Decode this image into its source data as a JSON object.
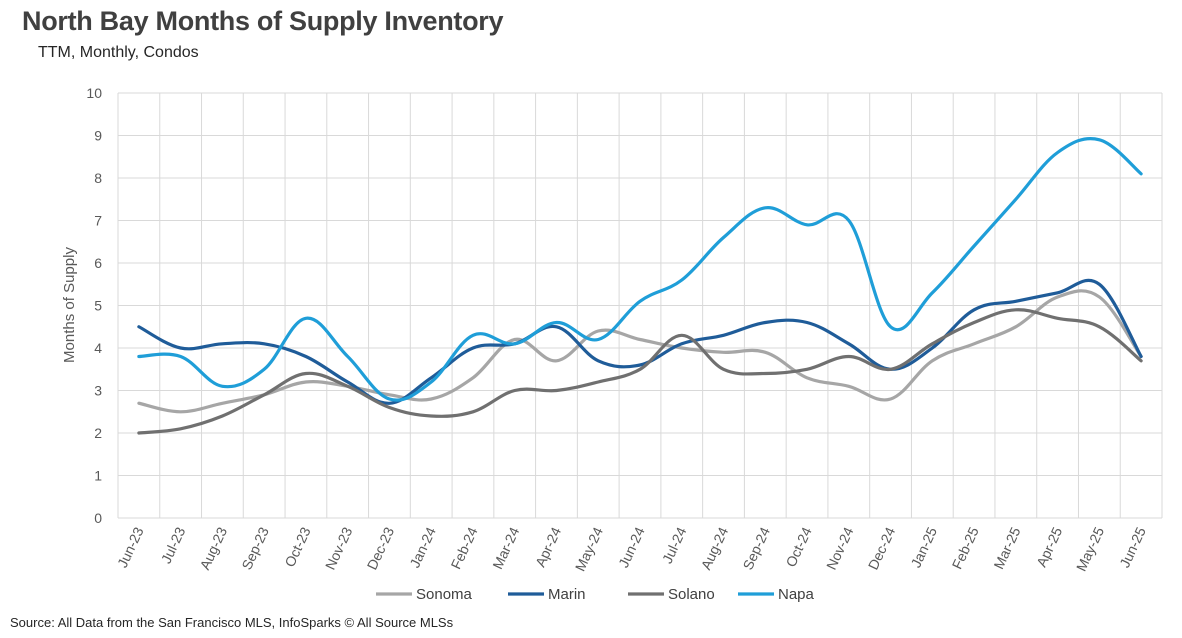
{
  "title": "North Bay Months of Supply Inventory",
  "subtitle": "TTM, Monthly, Condos",
  "source": "Source: All Data from the San Francisco MLS, InfoSparks © All Source MLSs",
  "chart_data": {
    "type": "line",
    "title": "North Bay Months of Supply Inventory",
    "subtitle": "TTM, Monthly, Condos",
    "xlabel": "",
    "ylabel": "Months of Supply",
    "ylim": [
      0,
      10
    ],
    "yticks": [
      "0",
      "1",
      "2",
      "3",
      "4",
      "5",
      "6",
      "7",
      "8",
      "9",
      "10"
    ],
    "grid": true,
    "legend_position": "bottom",
    "categories": [
      "Jun-23",
      "Jul-23",
      "Aug-23",
      "Sep-23",
      "Oct-23",
      "Nov-23",
      "Dec-23",
      "Jan-24",
      "Feb-24",
      "Mar-24",
      "Apr-24",
      "May-24",
      "Jun-24",
      "Jul-24",
      "Aug-24",
      "Sep-24",
      "Oct-24",
      "Nov-24",
      "Dec-24",
      "Jan-25",
      "Feb-25",
      "Mar-25",
      "Apr-25",
      "May-25",
      "Jun-25"
    ],
    "series": [
      {
        "name": "Sonoma",
        "color": "#a6a6a6",
        "values": [
          2.7,
          2.5,
          2.7,
          2.9,
          3.2,
          3.1,
          2.9,
          2.8,
          3.3,
          4.2,
          3.7,
          4.4,
          4.2,
          4.0,
          3.9,
          3.9,
          3.3,
          3.1,
          2.8,
          3.7,
          4.1,
          4.5,
          5.2,
          5.2,
          3.8
        ]
      },
      {
        "name": "Marin",
        "color": "#1f5c99",
        "values": [
          4.5,
          4.0,
          4.1,
          4.1,
          3.8,
          3.2,
          2.7,
          3.3,
          4.0,
          4.1,
          4.5,
          3.7,
          3.6,
          4.1,
          4.3,
          4.6,
          4.6,
          4.1,
          3.5,
          4.0,
          4.9,
          5.1,
          5.3,
          5.5,
          3.8
        ]
      },
      {
        "name": "Solano",
        "color": "#707070",
        "values": [
          2.0,
          2.1,
          2.4,
          2.9,
          3.4,
          3.1,
          2.6,
          2.4,
          2.5,
          3.0,
          3.0,
          3.2,
          3.5,
          4.3,
          3.5,
          3.4,
          3.5,
          3.8,
          3.5,
          4.1,
          4.6,
          4.9,
          4.7,
          4.5,
          3.7
        ]
      },
      {
        "name": "Napa",
        "color": "#1f9ed8",
        "values": [
          3.8,
          3.8,
          3.1,
          3.5,
          4.7,
          3.8,
          2.8,
          3.2,
          4.3,
          4.1,
          4.6,
          4.2,
          5.1,
          5.6,
          6.6,
          7.3,
          6.9,
          7.0,
          4.5,
          5.3,
          6.4,
          7.5,
          8.6,
          8.9,
          8.1
        ]
      }
    ]
  }
}
